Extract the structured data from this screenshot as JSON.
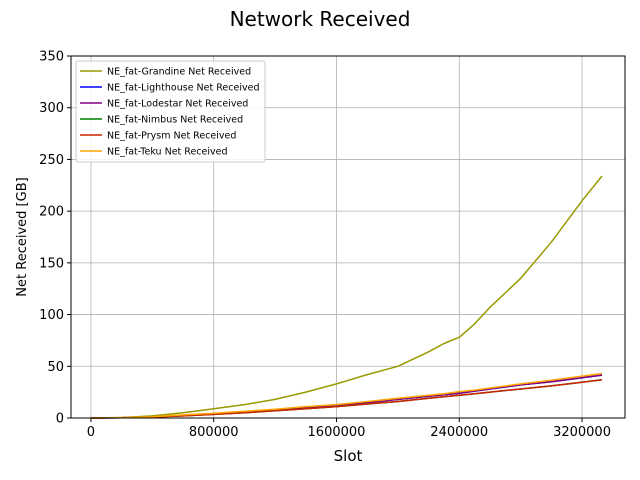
{
  "chart_data": {
    "type": "line",
    "title": "Network Received",
    "xlabel": "Slot",
    "ylabel": "Net Received [GB]",
    "xlim": [
      -130000,
      3480000
    ],
    "ylim": [
      0,
      350
    ],
    "xticks": [
      0,
      800000,
      1600000,
      2400000,
      3200000
    ],
    "xtick_labels": [
      "0",
      "800000",
      "1600000",
      "2400000",
      "3200000"
    ],
    "yticks": [
      0,
      50,
      100,
      150,
      200,
      250,
      300,
      350
    ],
    "ytick_labels": [
      "0",
      "50",
      "100",
      "150",
      "200",
      "250",
      "300",
      "350"
    ],
    "grid": true,
    "legend_position": "top-left",
    "x": [
      0,
      200000,
      400000,
      600000,
      800000,
      1000000,
      1200000,
      1400000,
      1600000,
      1800000,
      2000000,
      2200000,
      2300000,
      2400000,
      2500000,
      2600000,
      2800000,
      3000000,
      3200000,
      3330000
    ],
    "series": [
      {
        "name": "NE_fat-Grandine Net Received",
        "color": "#999900",
        "values": [
          0,
          0.5,
          2,
          5,
          9,
          13,
          18,
          25,
          33,
          42,
          50,
          64,
          72,
          78,
          91,
          107,
          135,
          170,
          210,
          234
        ]
      },
      {
        "name": "NE_fat-Lighthouse Net Received",
        "color": "#0000ff",
        "values": [
          0,
          0.3,
          1,
          2.5,
          4,
          6,
          8,
          10,
          12,
          15,
          18,
          21,
          22.5,
          24,
          26,
          28,
          32,
          35,
          39,
          41.5
        ]
      },
      {
        "name": "NE_fat-Lodestar Net Received",
        "color": "#800080",
        "values": [
          0,
          0.3,
          1,
          2.5,
          4,
          6,
          8,
          10,
          12,
          15,
          18,
          21,
          22.5,
          24,
          26,
          28,
          32,
          35,
          39,
          41.5
        ]
      },
      {
        "name": "NE_fat-Nimbus Net Received",
        "color": "#008000",
        "values": [
          0,
          0.3,
          1,
          2,
          3.5,
          5,
          7,
          9,
          11,
          13.5,
          16,
          19,
          20.5,
          22,
          23.5,
          25,
          28,
          31,
          34.5,
          37
        ]
      },
      {
        "name": "NE_fat-Prysm Net Received",
        "color": "#cc2200",
        "values": [
          0,
          0.3,
          1,
          2,
          3.5,
          5,
          7,
          9,
          11,
          13.5,
          16,
          19,
          20.5,
          22,
          23.5,
          25,
          28,
          31,
          34.5,
          37
        ]
      },
      {
        "name": "NE_fat-Teku Net Received",
        "color": "#ffa500",
        "values": [
          0,
          0.4,
          1.2,
          3,
          4.5,
          6.5,
          8.5,
          11,
          13,
          16,
          19,
          22,
          23.5,
          25.5,
          27,
          29,
          33,
          36.5,
          40.5,
          43
        ]
      }
    ]
  }
}
